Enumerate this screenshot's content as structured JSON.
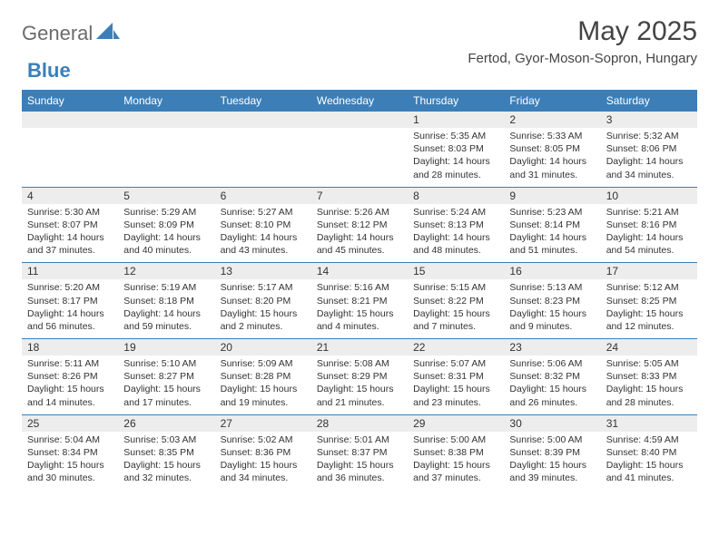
{
  "brand": {
    "part1": "General",
    "part2": "Blue"
  },
  "title": "May 2025",
  "location": "Fertod, Gyor-Moson-Sopron, Hungary",
  "colors": {
    "header_bg": "#3c7fb8",
    "header_text": "#ffffff",
    "band_bg": "#ededed",
    "rule": "#3c7fb8",
    "text": "#333333",
    "logo_gray": "#6b6b6b",
    "logo_blue": "#3c7fb8",
    "page_bg": "#ffffff"
  },
  "day_labels": [
    "Sunday",
    "Monday",
    "Tuesday",
    "Wednesday",
    "Thursday",
    "Friday",
    "Saturday"
  ],
  "weeks": [
    [
      null,
      null,
      null,
      null,
      {
        "n": "1",
        "sr": "5:35 AM",
        "ss": "8:03 PM",
        "dl": "14 hours and 28 minutes."
      },
      {
        "n": "2",
        "sr": "5:33 AM",
        "ss": "8:05 PM",
        "dl": "14 hours and 31 minutes."
      },
      {
        "n": "3",
        "sr": "5:32 AM",
        "ss": "8:06 PM",
        "dl": "14 hours and 34 minutes."
      }
    ],
    [
      {
        "n": "4",
        "sr": "5:30 AM",
        "ss": "8:07 PM",
        "dl": "14 hours and 37 minutes."
      },
      {
        "n": "5",
        "sr": "5:29 AM",
        "ss": "8:09 PM",
        "dl": "14 hours and 40 minutes."
      },
      {
        "n": "6",
        "sr": "5:27 AM",
        "ss": "8:10 PM",
        "dl": "14 hours and 43 minutes."
      },
      {
        "n": "7",
        "sr": "5:26 AM",
        "ss": "8:12 PM",
        "dl": "14 hours and 45 minutes."
      },
      {
        "n": "8",
        "sr": "5:24 AM",
        "ss": "8:13 PM",
        "dl": "14 hours and 48 minutes."
      },
      {
        "n": "9",
        "sr": "5:23 AM",
        "ss": "8:14 PM",
        "dl": "14 hours and 51 minutes."
      },
      {
        "n": "10",
        "sr": "5:21 AM",
        "ss": "8:16 PM",
        "dl": "14 hours and 54 minutes."
      }
    ],
    [
      {
        "n": "11",
        "sr": "5:20 AM",
        "ss": "8:17 PM",
        "dl": "14 hours and 56 minutes."
      },
      {
        "n": "12",
        "sr": "5:19 AM",
        "ss": "8:18 PM",
        "dl": "14 hours and 59 minutes."
      },
      {
        "n": "13",
        "sr": "5:17 AM",
        "ss": "8:20 PM",
        "dl": "15 hours and 2 minutes."
      },
      {
        "n": "14",
        "sr": "5:16 AM",
        "ss": "8:21 PM",
        "dl": "15 hours and 4 minutes."
      },
      {
        "n": "15",
        "sr": "5:15 AM",
        "ss": "8:22 PM",
        "dl": "15 hours and 7 minutes."
      },
      {
        "n": "16",
        "sr": "5:13 AM",
        "ss": "8:23 PM",
        "dl": "15 hours and 9 minutes."
      },
      {
        "n": "17",
        "sr": "5:12 AM",
        "ss": "8:25 PM",
        "dl": "15 hours and 12 minutes."
      }
    ],
    [
      {
        "n": "18",
        "sr": "5:11 AM",
        "ss": "8:26 PM",
        "dl": "15 hours and 14 minutes."
      },
      {
        "n": "19",
        "sr": "5:10 AM",
        "ss": "8:27 PM",
        "dl": "15 hours and 17 minutes."
      },
      {
        "n": "20",
        "sr": "5:09 AM",
        "ss": "8:28 PM",
        "dl": "15 hours and 19 minutes."
      },
      {
        "n": "21",
        "sr": "5:08 AM",
        "ss": "8:29 PM",
        "dl": "15 hours and 21 minutes."
      },
      {
        "n": "22",
        "sr": "5:07 AM",
        "ss": "8:31 PM",
        "dl": "15 hours and 23 minutes."
      },
      {
        "n": "23",
        "sr": "5:06 AM",
        "ss": "8:32 PM",
        "dl": "15 hours and 26 minutes."
      },
      {
        "n": "24",
        "sr": "5:05 AM",
        "ss": "8:33 PM",
        "dl": "15 hours and 28 minutes."
      }
    ],
    [
      {
        "n": "25",
        "sr": "5:04 AM",
        "ss": "8:34 PM",
        "dl": "15 hours and 30 minutes."
      },
      {
        "n": "26",
        "sr": "5:03 AM",
        "ss": "8:35 PM",
        "dl": "15 hours and 32 minutes."
      },
      {
        "n": "27",
        "sr": "5:02 AM",
        "ss": "8:36 PM",
        "dl": "15 hours and 34 minutes."
      },
      {
        "n": "28",
        "sr": "5:01 AM",
        "ss": "8:37 PM",
        "dl": "15 hours and 36 minutes."
      },
      {
        "n": "29",
        "sr": "5:00 AM",
        "ss": "8:38 PM",
        "dl": "15 hours and 37 minutes."
      },
      {
        "n": "30",
        "sr": "5:00 AM",
        "ss": "8:39 PM",
        "dl": "15 hours and 39 minutes."
      },
      {
        "n": "31",
        "sr": "4:59 AM",
        "ss": "8:40 PM",
        "dl": "15 hours and 41 minutes."
      }
    ]
  ],
  "labels": {
    "sunrise": "Sunrise:",
    "sunset": "Sunset:",
    "daylight": "Daylight:"
  }
}
